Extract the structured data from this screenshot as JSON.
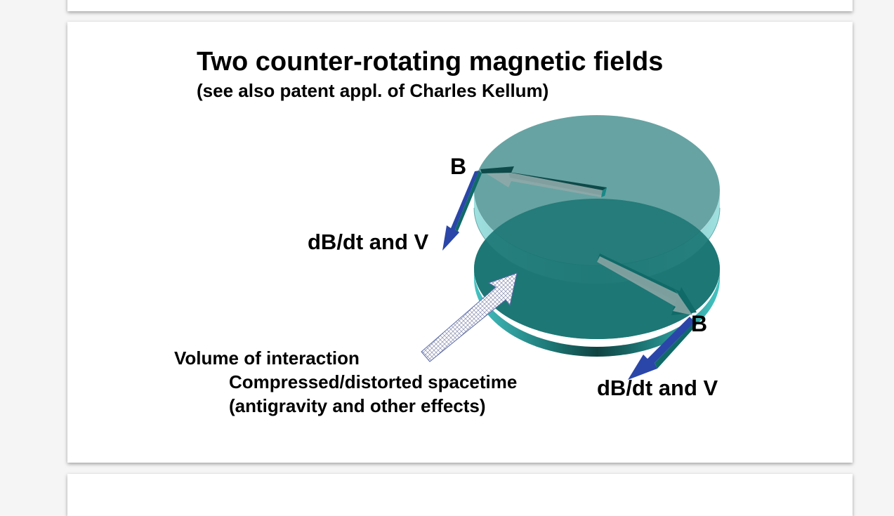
{
  "slide": {
    "title": "Two counter-rotating magnetic fields",
    "subtitle": "(see also patent appl. of Charles Kellum)"
  },
  "diagram": {
    "label_b_top": "B",
    "label_dbdt_top": "dB/dt and V",
    "label_b_bottom": "B",
    "label_dbdt_bottom": "dB/dt and V",
    "label_volume": "Volume of interaction",
    "label_compressed": "Compressed/distorted spacetime",
    "label_antigravity": "(antigravity and other effects)"
  },
  "colors": {
    "disk_top": "#5f9e9e",
    "disk_bottom": "#1e7775",
    "disk_edge_light": "#6fd0d0",
    "disk_edge_dark": "#17514f",
    "arrow_blue": "#2a46a8",
    "arrow_teal": "#0f6a68"
  }
}
